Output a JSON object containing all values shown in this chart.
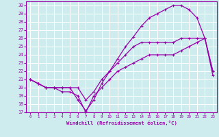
{
  "xlabel": "Windchill (Refroidissement éolien,°C)",
  "bg_color": "#ceeced",
  "grid_color": "#ffffff",
  "line_color": "#9900aa",
  "xlim": [
    -0.5,
    23.5
  ],
  "ylim": [
    17,
    30.5
  ],
  "xticks": [
    0,
    1,
    2,
    3,
    4,
    5,
    6,
    7,
    8,
    9,
    10,
    11,
    12,
    13,
    14,
    15,
    16,
    17,
    18,
    19,
    20,
    21,
    22,
    23
  ],
  "yticks": [
    17,
    18,
    19,
    20,
    21,
    22,
    23,
    24,
    25,
    26,
    27,
    28,
    29,
    30
  ],
  "line1_x": [
    0,
    1,
    2,
    3,
    4,
    5,
    6,
    7,
    8,
    9,
    10,
    11,
    12,
    13,
    14,
    15,
    16,
    17,
    18,
    19,
    20,
    21,
    22,
    23
  ],
  "line1_y": [
    21,
    20.5,
    20,
    20,
    19.5,
    19.5,
    19,
    17,
    19,
    20,
    21,
    22,
    22.5,
    23,
    23.5,
    24,
    24,
    24,
    24,
    24.5,
    25,
    25.5,
    26,
    21.5
  ],
  "line2_x": [
    0,
    1,
    2,
    3,
    4,
    5,
    6,
    7,
    8,
    9,
    10,
    11,
    12,
    13,
    14,
    15,
    16,
    17,
    18,
    19,
    20,
    21,
    22,
    23
  ],
  "line2_y": [
    21,
    20.5,
    20,
    20,
    20,
    20,
    18.5,
    17.2,
    18.5,
    20.5,
    22,
    23.5,
    25,
    26.2,
    27.5,
    28.5,
    29,
    29.5,
    30,
    30,
    29.5,
    28.5,
    26,
    22
  ],
  "line3_x": [
    0,
    1,
    2,
    3,
    4,
    5,
    6,
    7,
    8,
    9,
    10,
    11,
    12,
    13,
    14,
    15,
    16,
    17,
    18,
    19,
    20,
    21,
    22,
    23
  ],
  "line3_y": [
    21,
    20.5,
    20,
    20,
    20,
    20,
    20,
    18.5,
    19.5,
    21,
    22,
    23,
    24,
    25,
    25.5,
    25.5,
    25.5,
    25.5,
    25.5,
    26,
    26,
    26,
    26,
    22
  ]
}
